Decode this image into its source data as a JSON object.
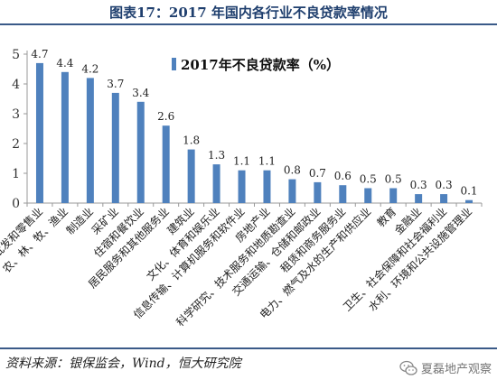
{
  "header": {
    "title": "图表17：2017 年国内各行业不良贷款率情况"
  },
  "footer": {
    "source": "资料来源：银保监会，Wind，恒大研究院",
    "brand": "夏磊地产观察",
    "brand_icon": "wechat-icon"
  },
  "chart_data": {
    "type": "bar",
    "legend_position": "top-right",
    "grid": false,
    "ylim": [
      0,
      5
    ],
    "yticks": [
      0,
      1,
      2,
      3,
      4,
      5
    ],
    "bar_color": "#4f81bd",
    "series": [
      {
        "name": "2017年不良贷款率（%）",
        "values": [
          4.7,
          4.4,
          4.2,
          3.7,
          3.4,
          2.6,
          1.8,
          1.3,
          1.1,
          1.1,
          0.8,
          0.7,
          0.6,
          0.5,
          0.5,
          0.3,
          0.3,
          0.1
        ]
      }
    ],
    "categories": [
      "批发和零售业",
      "农、林、牧、渔业",
      "制造业",
      "采矿业",
      "住宿和餐饮业",
      "居民服务和其他服务业",
      "建筑业",
      "文化、体育和娱乐业",
      "信息传输、计算机服务和软件业",
      "房地产业",
      "科学研究、技术服务和地质勘查业",
      "交通运输、仓储和邮政业",
      "租赁和商务服务业",
      "电力、燃气及水的生产和供应业",
      "教育",
      "金融业",
      "卫生、社会保障和社会福利业",
      "水利、环境和公共设施管理业"
    ]
  }
}
